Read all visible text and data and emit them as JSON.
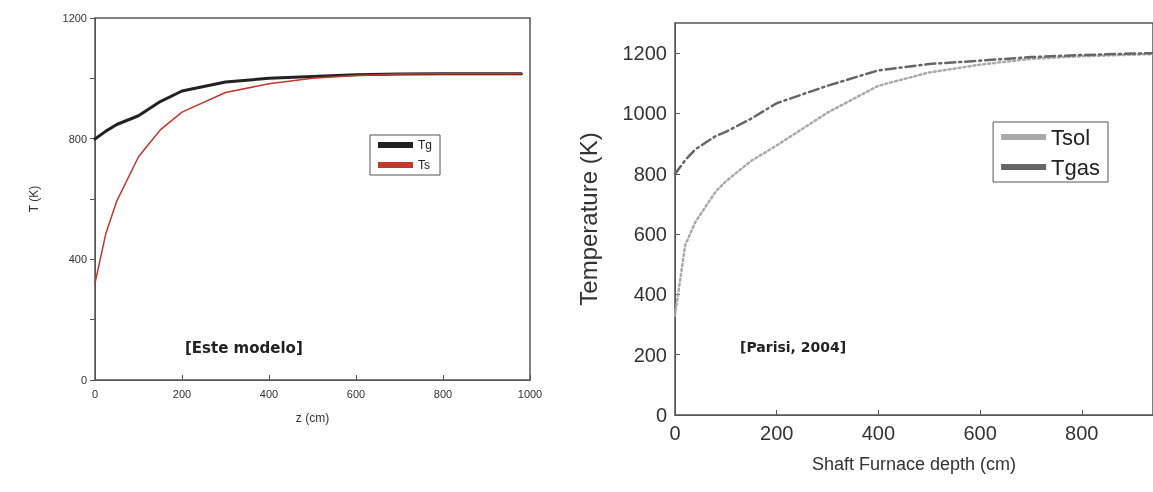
{
  "chart_data": [
    {
      "type": "line",
      "xlabel": "z (cm)",
      "ylabel": "T (K)",
      "x": [
        0,
        25,
        50,
        100,
        150,
        200,
        300,
        400,
        500,
        600,
        700,
        800,
        980
      ],
      "xlim": [
        0,
        1000
      ],
      "xticks": [
        0,
        200,
        400,
        600,
        800,
        1000
      ],
      "ylim": [
        0,
        1200
      ],
      "yticks": [
        0,
        {
          "value": 200,
          "label": null
        },
        400,
        {
          "value": 600,
          "label": null
        },
        800,
        {
          "value": 1000,
          "label": null
        },
        1200
      ],
      "grid": false,
      "legend": "right",
      "line_style": "solid",
      "marker": "none",
      "annotations": [
        "[Este modelo]"
      ],
      "series": [
        {
          "name": "Tg",
          "color": "#222222",
          "values": [
            799,
            825,
            847,
            876,
            923,
            958,
            988,
            1000,
            1006,
            1012,
            1014,
            1015,
            1015
          ]
        },
        {
          "name": "Ts",
          "color": "#c0392b",
          "values": [
            321,
            486,
            593,
            740,
            829,
            888,
            953,
            982,
            1000,
            1009,
            1014,
            1015,
            1015
          ]
        }
      ]
    },
    {
      "type": "line",
      "xlabel": "Shaft Furnace depth (cm)",
      "ylabel": "Temperature (K)",
      "x": [
        0,
        20,
        40,
        80,
        100,
        150,
        200,
        300,
        400,
        500,
        600,
        700,
        800,
        940
      ],
      "xlim": [
        0,
        940
      ],
      "xticks": [
        0,
        200,
        400,
        600,
        800
      ],
      "ylim": [
        0,
        1300
      ],
      "yticks": [
        0,
        200,
        400,
        600,
        800,
        1000,
        1200
      ],
      "grid": false,
      "legend": "top right",
      "marker": "none",
      "annotations": [
        "[Parisi, 2004]"
      ],
      "series": [
        {
          "name": "Tsol",
          "color": "#aaaaaa",
          "line_style": "dotted",
          "values": [
            330,
            563,
            640,
            741,
            775,
            843,
            894,
            1003,
            1092,
            1136,
            1162,
            1181,
            1190,
            1197
          ]
        },
        {
          "name": "Tgas",
          "color": "#666666",
          "line_style": "dashed",
          "values": [
            799,
            845,
            881,
            925,
            939,
            983,
            1034,
            1092,
            1143,
            1164,
            1175,
            1187,
            1194,
            1200
          ]
        }
      ]
    }
  ]
}
